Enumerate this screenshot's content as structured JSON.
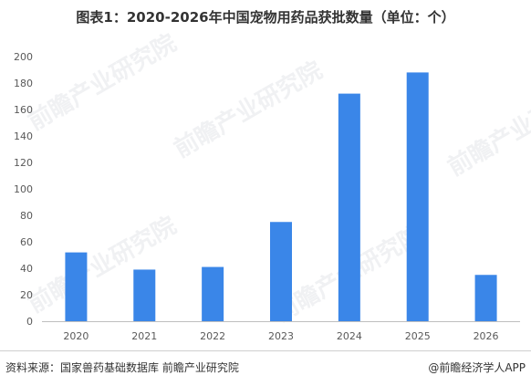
{
  "title": "图表1：2020-2026年中国宠物用药品获批数量（单位：个）",
  "chart_data": {
    "type": "bar",
    "categories": [
      "2020",
      "2021",
      "2022",
      "2023",
      "2024",
      "2025",
      "2026"
    ],
    "values": [
      52,
      39,
      41,
      75,
      172,
      188,
      35
    ],
    "title": "图表1：2020-2026年中国宠物用药品获批数量（单位：个）",
    "xlabel": "",
    "ylabel": "",
    "ylim": [
      0,
      200
    ],
    "yticks": [
      0,
      20,
      40,
      60,
      80,
      100,
      120,
      140,
      160,
      180,
      200
    ],
    "grid": false,
    "legend": "none",
    "bar_color": "#3a86e8"
  },
  "footer": {
    "source": "资料来源：国家兽药基础数据库  前瞻产业研究院",
    "credit": "@前瞻经济学人APP"
  },
  "watermark": {
    "text": "前瞻产业研究院"
  }
}
